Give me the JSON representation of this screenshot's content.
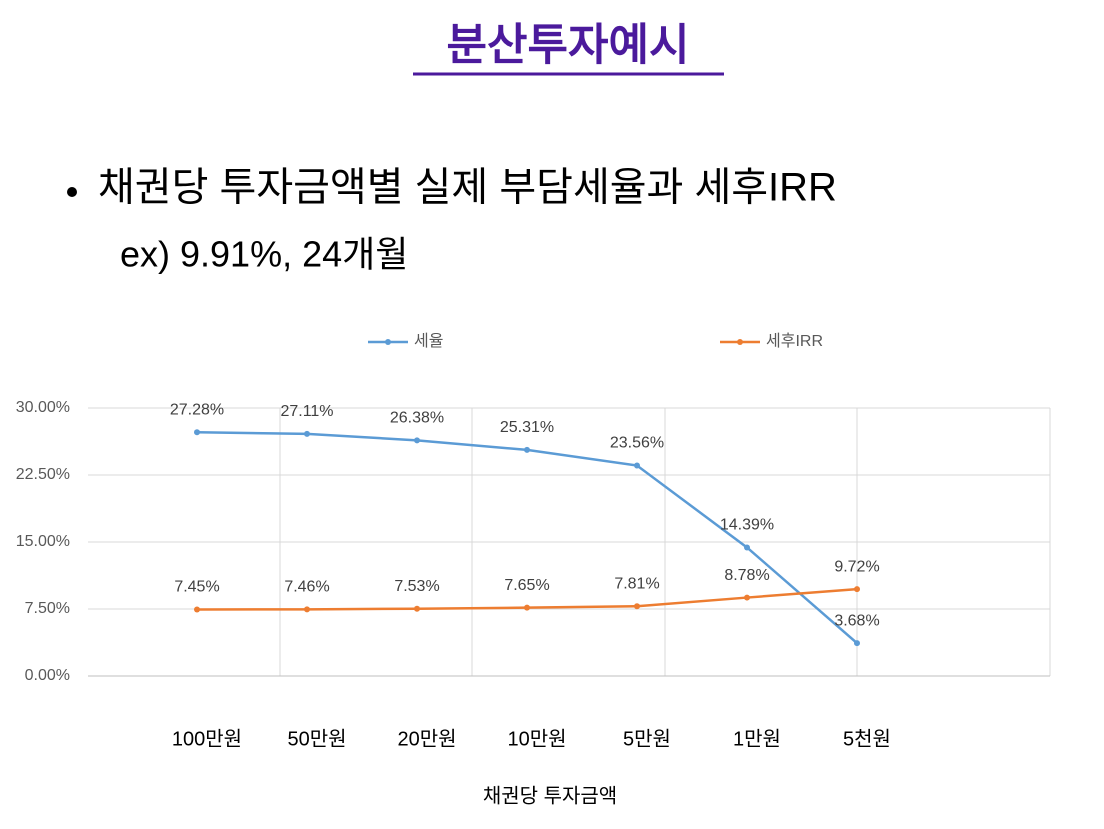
{
  "slide": {
    "title": "분산투자예시",
    "bullet": "채권당 투자금액별 실제 부담세율과 세후IRR",
    "sub": "ex) 9.91%, 24개월"
  },
  "chart_data": {
    "type": "line",
    "x_label": "채권당 투자금액",
    "categories": [
      "100만원",
      "50만원",
      "20만원",
      "10만원",
      "5만원",
      "1만원",
      "5천원"
    ],
    "series": [
      {
        "name": "세율",
        "color": "#5b9bd5",
        "values": [
          27.28,
          27.11,
          26.38,
          25.31,
          23.56,
          14.39,
          3.68
        ],
        "value_labels": [
          "27.28%",
          "27.11%",
          "26.38%",
          "25.31%",
          "23.56%",
          "14.39%",
          "3.68%"
        ]
      },
      {
        "name": "세후IRR",
        "color": "#ed7d31",
        "values": [
          7.45,
          7.46,
          7.53,
          7.65,
          7.81,
          8.78,
          9.72
        ],
        "value_labels": [
          "7.45%",
          "7.46%",
          "7.53%",
          "7.65%",
          "7.81%",
          "8.78%",
          "9.72%"
        ]
      }
    ],
    "ylim": [
      0,
      30
    ],
    "yticks": [
      {
        "value": 0,
        "label": "0.00%"
      },
      {
        "value": 7.5,
        "label": "7.50%"
      },
      {
        "value": 15,
        "label": "15.00%"
      },
      {
        "value": 22.5,
        "label": "22.50%"
      },
      {
        "value": 30,
        "label": "30.00%"
      }
    ],
    "grid": true,
    "legend": "top"
  }
}
